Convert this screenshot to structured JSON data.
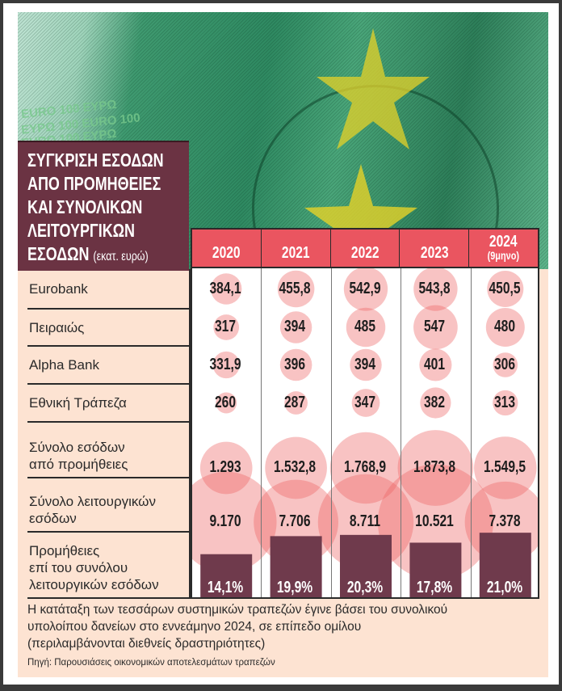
{
  "title": {
    "main": "ΣΥΓΚΡΙΣΗ ΕΣΟΔΩΝ ΑΠΟ ΠΡΟΜΗΘΕΙΕΣ ΚΑΙ ΣΥΝΟΛΙΚΩΝ ΛΕΙΤΟΥΡΓΙΚΩΝ ΕΣΟΔΩΝ",
    "lines": [
      "ΣΥΓΚΡΙΣΗ ΕΣΟΔΩΝ",
      "ΑΠΟ ΠΡΟΜΗΘΕΙΕΣ",
      "ΚΑΙ ΣΥΝΟΛΙΚΩΝ",
      "ΛΕΙΤΟΥΡΓΙΚΩΝ",
      "ΕΣΟΔΩΝ"
    ],
    "unit": "(εκατ. ευρώ)"
  },
  "photo_text": [
    "EURO 100 EYPΩ",
    "EYPΩ 100 EURO 100",
    "EURO 100 EYPΩ"
  ],
  "colors": {
    "title_bg": "#6b3343",
    "header_bg": "#ea5560",
    "panel_bg": "#fde3d2",
    "bubble": "rgba(236,96,96,0.38)",
    "bar": "#6f3a4c"
  },
  "chart_data": {
    "type": "table",
    "title": "ΣΥΓΚΡΙΣΗ ΕΣΟΔΩΝ ΑΠΟ ΠΡΟΜΗΘΕΙΕΣ ΚΑΙ ΣΥΝΟΛΙΚΩΝ ΛΕΙΤΟΥΡΓΙΚΩΝ ΕΣΟΔΩΝ (εκατ. ευρώ)",
    "columns": [
      {
        "year": "2020",
        "sub": ""
      },
      {
        "year": "2021",
        "sub": ""
      },
      {
        "year": "2022",
        "sub": ""
      },
      {
        "year": "2023",
        "sub": ""
      },
      {
        "year": "2024",
        "sub": "(9μηνο)"
      }
    ],
    "rows": [
      {
        "label": [
          "Eurobank"
        ],
        "values": [
          384.1,
          455.8,
          542.9,
          543.8,
          450.5
        ],
        "display": [
          "384,1",
          "455,8",
          "542,9",
          "543,8",
          "450,5"
        ],
        "mark": "bubble"
      },
      {
        "label": [
          "Πειραιώς"
        ],
        "values": [
          317,
          394,
          485,
          547,
          480
        ],
        "display": [
          "317",
          "394",
          "485",
          "547",
          "480"
        ],
        "mark": "bubble"
      },
      {
        "label": [
          "Alpha Bank"
        ],
        "values": [
          331.9,
          396,
          394,
          401,
          306
        ],
        "display": [
          "331,9",
          "396",
          "394",
          "401",
          "306"
        ],
        "mark": "bubble"
      },
      {
        "label": [
          "Εθνική Τράπεζα"
        ],
        "values": [
          260,
          287,
          347,
          382,
          313
        ],
        "display": [
          "260",
          "287",
          "347",
          "382",
          "313"
        ],
        "mark": "bubble"
      },
      {
        "label": [
          "Σύνολο εσόδων",
          "από προμήθειες"
        ],
        "values": [
          1293,
          1532.8,
          1768.9,
          1873.8,
          1549.5
        ],
        "display": [
          "1.293",
          "1.532,8",
          "1.768,9",
          "1.873,8",
          "1.549,5"
        ],
        "mark": "bubble"
      },
      {
        "label": [
          "Σύνολο λειτουργικών",
          "εσόδων"
        ],
        "values": [
          9170,
          7706,
          8711,
          10521,
          7378
        ],
        "display": [
          "9.170",
          "7.706",
          "8.711",
          "10.521",
          "7.378"
        ],
        "mark": "bubble"
      },
      {
        "label": [
          "Προμήθειες",
          "επί του συνόλου",
          "λειτουργικών εσόδων"
        ],
        "values": [
          14.1,
          19.9,
          20.3,
          17.8,
          21.0
        ],
        "display": [
          "14,1%",
          "19,9%",
          "20,3%",
          "17,8%",
          "21,0%"
        ],
        "mark": "bar"
      }
    ]
  },
  "note": [
    "Η κατάταξη των τεσσάρων συστημικών τραπεζών έγινε βάσει του συνολικού",
    "υπολοίπου δανείων στο εννεάμηνο 2024, σε επίπεδο ομίλου",
    "(περιλαμβάνονται διεθνείς δραστηριότητες)"
  ],
  "source": "Πηγή: Παρουσιάσεις οικονομικών αποτελεσμάτων τραπεζών"
}
